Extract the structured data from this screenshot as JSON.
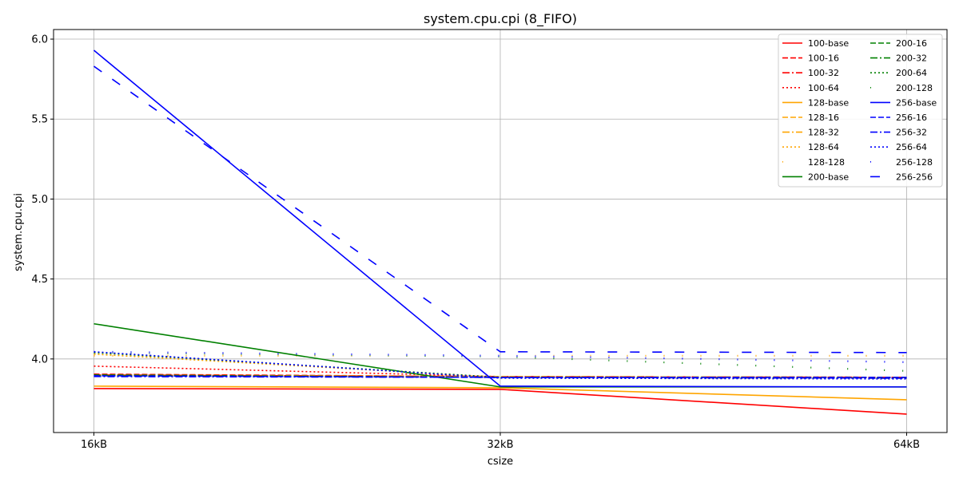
{
  "chart_data": {
    "type": "line",
    "title": "system.cpu.cpi (8_FIFO)",
    "xlabel": "csize",
    "ylabel": "system.cpu.cpi",
    "categories": [
      "16kB",
      "32kB",
      "64kB"
    ],
    "ylim": [
      3.54,
      6.06
    ],
    "yticks": [
      "4.0",
      "4.5",
      "5.0",
      "5.5",
      "6.0"
    ],
    "grid": true,
    "legend_position": "top-right",
    "colors": {
      "100": "#ff0000",
      "128": "#ffa500",
      "200": "#008000",
      "256": "#0000ff"
    },
    "series": [
      {
        "name": "100-base",
        "color": "#ff0000",
        "style": "solid",
        "values": [
          3.815,
          3.81,
          3.655
        ]
      },
      {
        "name": "100-16",
        "color": "#ff0000",
        "style": "dashed",
        "values": [
          3.905,
          3.89,
          3.885
        ]
      },
      {
        "name": "100-32",
        "color": "#ff0000",
        "style": "dashdot",
        "values": [
          3.9,
          3.89,
          3.885
        ]
      },
      {
        "name": "100-64",
        "color": "#ff0000",
        "style": "dotted",
        "values": [
          3.955,
          3.89,
          3.885
        ]
      },
      {
        "name": "128-base",
        "color": "#ffa500",
        "style": "solid",
        "values": [
          3.83,
          3.82,
          3.745
        ]
      },
      {
        "name": "128-16",
        "color": "#ffa500",
        "style": "dashed",
        "values": [
          3.9,
          3.89,
          3.885
        ]
      },
      {
        "name": "128-32",
        "color": "#ffa500",
        "style": "dashdot",
        "values": [
          3.895,
          3.885,
          3.88
        ]
      },
      {
        "name": "128-64",
        "color": "#ffa500",
        "style": "dotted",
        "values": [
          4.03,
          3.885,
          3.88
        ]
      },
      {
        "name": "128-128",
        "color": "#ffa500",
        "style": "sparse",
        "values": [
          4.02,
          4.02,
          4.02
        ]
      },
      {
        "name": "200-base",
        "color": "#008000",
        "style": "solid",
        "values": [
          4.22,
          3.825,
          3.825
        ]
      },
      {
        "name": "200-16",
        "color": "#008000",
        "style": "dashed",
        "values": [
          3.9,
          3.885,
          3.885
        ]
      },
      {
        "name": "200-32",
        "color": "#008000",
        "style": "dashdot",
        "values": [
          3.895,
          3.885,
          3.88
        ]
      },
      {
        "name": "200-64",
        "color": "#008000",
        "style": "dotted",
        "values": [
          4.04,
          3.885,
          3.88
        ]
      },
      {
        "name": "200-128",
        "color": "#008000",
        "style": "sparse",
        "values": [
          4.04,
          4.015,
          3.925
        ]
      },
      {
        "name": "256-base",
        "color": "#0000ff",
        "style": "solid",
        "values": [
          5.93,
          3.83,
          3.825
        ]
      },
      {
        "name": "256-16",
        "color": "#0000ff",
        "style": "dashed",
        "values": [
          3.895,
          3.885,
          3.885
        ]
      },
      {
        "name": "256-32",
        "color": "#0000ff",
        "style": "dashdot",
        "values": [
          3.89,
          3.885,
          3.88
        ]
      },
      {
        "name": "256-64",
        "color": "#0000ff",
        "style": "dotted",
        "values": [
          4.045,
          3.88,
          3.875
        ]
      },
      {
        "name": "256-128",
        "color": "#0000ff",
        "style": "sparse",
        "values": [
          4.045,
          4.02,
          3.98
        ]
      },
      {
        "name": "256-256",
        "color": "#0000ff",
        "style": "loosedash",
        "values": [
          5.83,
          4.045,
          4.04
        ]
      }
    ]
  }
}
